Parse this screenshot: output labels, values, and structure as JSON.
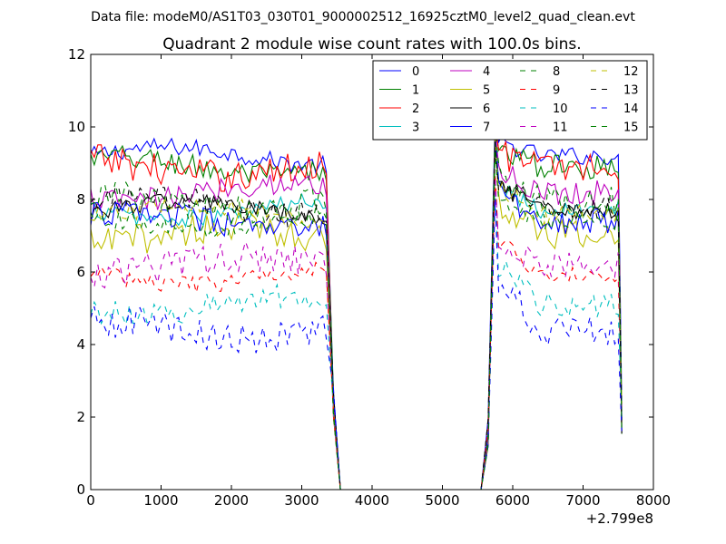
{
  "chart_data": {
    "type": "line",
    "suptitle": "Data file: modeM0/AS1T03_030T01_9000002512_16925cztM0_level2_quad_clean.evt",
    "title": "Quadrant 2 module wise count rates with 100.0s bins.",
    "xlabel": "",
    "ylabel": "",
    "x_offset_label": "+2.799e8",
    "xlim": [
      0,
      8000
    ],
    "ylim": [
      0,
      12
    ],
    "xticks": [
      0,
      1000,
      2000,
      3000,
      4000,
      5000,
      6000,
      7000,
      8000
    ],
    "yticks": [
      0,
      2,
      4,
      6,
      8,
      10,
      12
    ],
    "xtick_labels": [
      "0",
      "1000",
      "2000",
      "3000",
      "4000",
      "5000",
      "6000",
      "7000",
      "8000"
    ],
    "ytick_labels": [
      "0",
      "2",
      "4",
      "6",
      "8",
      "10",
      "12"
    ],
    "grid": false,
    "legend": {
      "location": "top-right",
      "columns": 4
    },
    "segment_breaks": {
      "start": 0,
      "end1": 3350,
      "drop_start": 3450,
      "zero": 3550,
      "zero_end": 5550,
      "rise": 5650,
      "peak": 5750,
      "end2": 7550
    },
    "series": [
      {
        "name": "0",
        "color": "#0000ff",
        "dash": "solid",
        "level": 9.2,
        "peak": 10.3
      },
      {
        "name": "1",
        "color": "#008000",
        "dash": "solid",
        "level": 8.9,
        "peak": 10.1
      },
      {
        "name": "2",
        "color": "#ff0000",
        "dash": "solid",
        "level": 8.9,
        "peak": 10.0
      },
      {
        "name": "3",
        "color": "#00bfbf",
        "dash": "solid",
        "level": 7.7,
        "peak": 9.8
      },
      {
        "name": "4",
        "color": "#bf00bf",
        "dash": "solid",
        "level": 8.2,
        "peak": 9.9
      },
      {
        "name": "5",
        "color": "#bfbf00",
        "dash": "solid",
        "level": 7.0,
        "peak": 9.6
      },
      {
        "name": "6",
        "color": "#000000",
        "dash": "solid",
        "level": 7.7,
        "peak": 9.5
      },
      {
        "name": "7",
        "color": "#0000ff",
        "dash": "solid",
        "level": 7.4,
        "peak": 9.7
      },
      {
        "name": "8",
        "color": "#008000",
        "dash": "dashed",
        "level": 7.9,
        "peak": 9.9
      },
      {
        "name": "9",
        "color": "#ff0000",
        "dash": "dashed",
        "level": 5.9,
        "peak": 8.7
      },
      {
        "name": "10",
        "color": "#00bfbf",
        "dash": "dashed",
        "level": 5.1,
        "peak": 8.2
      },
      {
        "name": "11",
        "color": "#bf00bf",
        "dash": "dashed",
        "level": 6.2,
        "peak": 8.6
      },
      {
        "name": "12",
        "color": "#bfbf00",
        "dash": "dashed",
        "level": 7.6,
        "peak": 9.7
      },
      {
        "name": "13",
        "color": "#000000",
        "dash": "dashed",
        "level": 7.8,
        "peak": 9.6
      },
      {
        "name": "14",
        "color": "#0000ff",
        "dash": "dashed",
        "level": 4.4,
        "peak": 8.0
      },
      {
        "name": "15",
        "color": "#008000",
        "dash": "dashed",
        "level": 7.4,
        "peak": 9.3
      }
    ]
  }
}
